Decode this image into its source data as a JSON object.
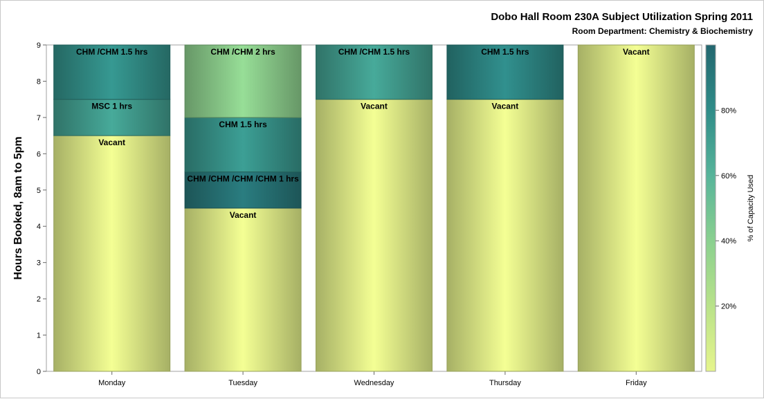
{
  "chart_data": {
    "type": "bar",
    "stacked": true,
    "title": "Dobo Hall Room 230A Subject Utilization Spring 2011",
    "subtitle": "Room Department:  Chemistry & Biochemistry",
    "xlabel": "",
    "ylabel": "Hours Booked, 8am to 5pm",
    "ylim": [
      0,
      9
    ],
    "yticks": [
      "0",
      "1",
      "2",
      "3",
      "4",
      "5",
      "6",
      "7",
      "8",
      "9"
    ],
    "categories": [
      "Monday",
      "Tuesday",
      "Wednesday",
      "Thursday",
      "Friday"
    ],
    "bars": [
      {
        "day": "Monday",
        "segments": [
          {
            "label": "Vacant",
            "hours": 6.5,
            "pct_capacity": 0
          },
          {
            "label": "MSC 1 hrs",
            "hours": 1,
            "pct_capacity": 70
          },
          {
            "label": "CHM /CHM 1.5 hrs",
            "hours": 1.5,
            "pct_capacity": 78
          }
        ]
      },
      {
        "day": "Tuesday",
        "segments": [
          {
            "label": "Vacant",
            "hours": 4.5,
            "pct_capacity": 0
          },
          {
            "label": "CHM /CHM /CHM /CHM 1 hrs",
            "hours": 1,
            "pct_capacity": 92
          },
          {
            "label": "CHM 1.5 hrs",
            "hours": 1.5,
            "pct_capacity": 75
          },
          {
            "label": "CHM /CHM 2 hrs",
            "hours": 2,
            "pct_capacity": 38
          }
        ]
      },
      {
        "day": "Wednesday",
        "segments": [
          {
            "label": "Vacant",
            "hours": 7.5,
            "pct_capacity": 0
          },
          {
            "label": "CHM /CHM 1.5 hrs",
            "hours": 1.5,
            "pct_capacity": 70
          }
        ]
      },
      {
        "day": "Thursday",
        "segments": [
          {
            "label": "Vacant",
            "hours": 7.5,
            "pct_capacity": 0
          },
          {
            "label": "CHM 1.5 hrs",
            "hours": 1.5,
            "pct_capacity": 82
          }
        ]
      },
      {
        "day": "Friday",
        "segments": [
          {
            "label": "Vacant",
            "hours": 9,
            "pct_capacity": 0
          }
        ]
      }
    ],
    "colorbar": {
      "title": "% of Capacity Used",
      "ticks": [
        {
          "label": "20%",
          "value": 20
        },
        {
          "label": "40%",
          "value": 40
        },
        {
          "label": "60%",
          "value": 60
        },
        {
          "label": "80%",
          "value": 80
        }
      ],
      "range": [
        0,
        100
      ],
      "colors": [
        "#e6f58c",
        "#b9e28a",
        "#8ad08f",
        "#57b49a",
        "#2f8c88",
        "#23676f"
      ]
    },
    "legend_placement": "right",
    "grid": false
  }
}
